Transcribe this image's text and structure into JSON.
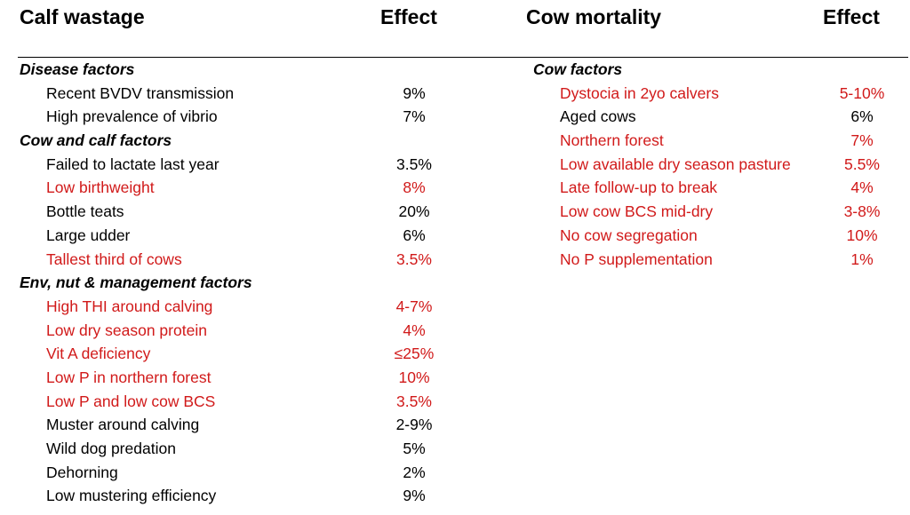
{
  "colors": {
    "highlight": "#d11a1a",
    "text": "#000000"
  },
  "left": {
    "title": "Calf wastage",
    "effect_header": "Effect",
    "rows": [
      {
        "type": "section",
        "label": "Disease factors"
      },
      {
        "type": "item",
        "label": "Recent BVDV transmission",
        "value": "9%",
        "highlight": false
      },
      {
        "type": "item",
        "label": "High prevalence of vibrio",
        "value": "7%",
        "highlight": false
      },
      {
        "type": "section",
        "label": "Cow and calf factors"
      },
      {
        "type": "item",
        "label": "Failed to lactate last year",
        "value": "3.5%",
        "highlight": false
      },
      {
        "type": "item",
        "label": "Low birthweight",
        "value": "8%",
        "highlight": true
      },
      {
        "type": "item",
        "label": "Bottle teats",
        "value": "20%",
        "highlight": false
      },
      {
        "type": "item",
        "label": "Large udder",
        "value": "6%",
        "highlight": false
      },
      {
        "type": "item",
        "label": "Tallest third of cows",
        "value": "3.5%",
        "highlight": true
      },
      {
        "type": "section",
        "label": "Env, nut & management factors"
      },
      {
        "type": "item",
        "label": "High THI around calving",
        "value": "4-7%",
        "highlight": true
      },
      {
        "type": "item",
        "label": "Low dry season protein",
        "value": "4%",
        "highlight": true
      },
      {
        "type": "item",
        "label": "Vit A deficiency",
        "value": "≤25%",
        "highlight": true
      },
      {
        "type": "item",
        "label": "Low P in northern forest",
        "value": "10%",
        "highlight": true
      },
      {
        "type": "item",
        "label": "Low P and low cow BCS",
        "value": "3.5%",
        "highlight": true
      },
      {
        "type": "item",
        "label": "Muster around calving",
        "value": "2-9%",
        "highlight": false
      },
      {
        "type": "item",
        "label": "Wild dog predation",
        "value": "5%",
        "highlight": false
      },
      {
        "type": "item",
        "label": "Dehorning",
        "value": "2%",
        "highlight": false
      },
      {
        "type": "item",
        "label": "Low mustering efficiency",
        "value": "9%",
        "highlight": false
      }
    ]
  },
  "right": {
    "title": "Cow mortality",
    "effect_header": "Effect",
    "rows": [
      {
        "type": "section",
        "label": "Cow factors"
      },
      {
        "type": "item",
        "label": "Dystocia in 2yo calvers",
        "value": "5-10%",
        "highlight": true
      },
      {
        "type": "item",
        "label": "Aged cows",
        "value": "6%",
        "highlight": false
      },
      {
        "type": "item",
        "label": "Northern forest",
        "value": "7%",
        "highlight": true
      },
      {
        "type": "item",
        "label": "Low available dry season pasture",
        "value": "5.5%",
        "highlight": true
      },
      {
        "type": "item",
        "label": "Late follow-up to break",
        "value": "4%",
        "highlight": true
      },
      {
        "type": "item",
        "label": "Low cow BCS mid-dry",
        "value": "3-8%",
        "highlight": true
      },
      {
        "type": "item",
        "label": "No cow segregation",
        "value": "10%",
        "highlight": true
      },
      {
        "type": "item",
        "label": "No P supplementation",
        "value": "1%",
        "highlight": true
      }
    ]
  }
}
